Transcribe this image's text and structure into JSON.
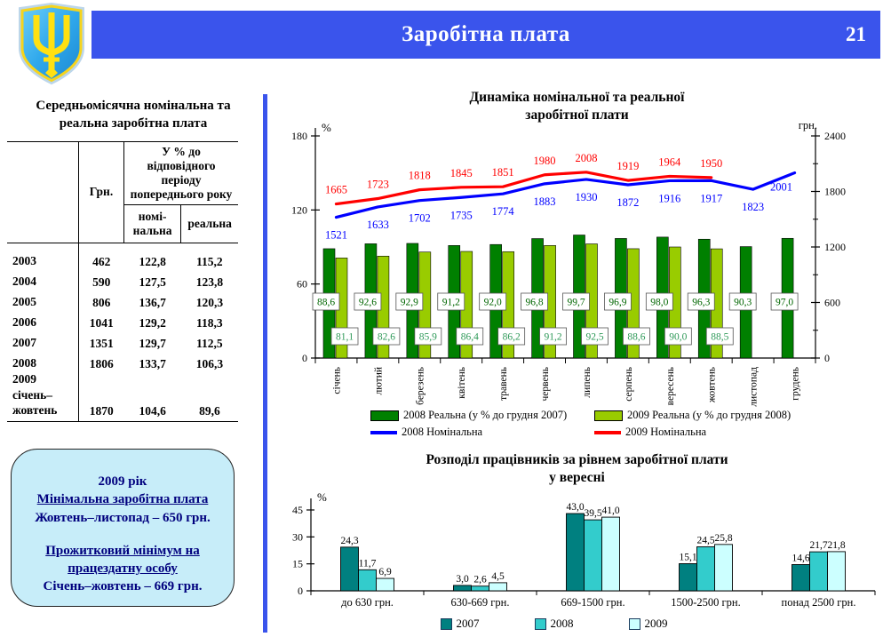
{
  "colors": {
    "header_blue": "#3A54EC",
    "info_box_bg": "#C7EDF9",
    "info_box_text": "#00007E",
    "shield_blue": "#2FA8EC",
    "trident_yellow": "#FFE012"
  },
  "header": {
    "title": "Заробітна плата",
    "page_number": "21"
  },
  "left_panel": {
    "title": "Середньомісячна номінальна та\nреальна  заробітна плата",
    "table": {
      "header_grn": "Грн.",
      "header_group": "У % до відповідного періоду попереднього року",
      "header_nominal": "номі-\nнальна",
      "header_real": "реальна",
      "rows": [
        {
          "period": "2003",
          "grn": "462",
          "nominal": "122,8",
          "real": "115,2"
        },
        {
          "period": "2004",
          "grn": "590",
          "nominal": "127,5",
          "real": "123,8"
        },
        {
          "period": "2005",
          "grn": "806",
          "nominal": "136,7",
          "real": "120,3"
        },
        {
          "period": "2006",
          "grn": "1041",
          "nominal": "129,2",
          "real": "118,3"
        },
        {
          "period": "2007",
          "grn": "1351",
          "nominal": "129,7",
          "real": "112,5"
        },
        {
          "period": "2008",
          "grn": "1806",
          "nominal": "133,7",
          "real": "106,3"
        },
        {
          "period": "2009\nсічень–\nжовтень",
          "grn": "1870",
          "nominal": "104,6",
          "real": "89,6"
        }
      ]
    },
    "info_box": {
      "line1": "2009  рік",
      "line2": "Мінімальна заробітна плата",
      "line3": "Жовтень–листопад – 650 грн.",
      "line4": "Прожитковий мінімум на працездатну особу",
      "line5": "Січень–жовтень – 669 грн."
    }
  },
  "chart_data": [
    {
      "type": "bar+line",
      "title": "Динаміка номінальної та реальної\nзаробітної плати",
      "categories": [
        "січень",
        "лютий",
        "березень",
        "квітень",
        "травень",
        "червень",
        "липень",
        "серпень",
        "вересень",
        "жовтень",
        "листопад",
        "грудень"
      ],
      "left_axis": {
        "unit": "%",
        "min": 0,
        "max": 180,
        "ticks": [
          0,
          60,
          120,
          180
        ]
      },
      "right_axis": {
        "unit": "грн.",
        "min": 0,
        "max": 2400,
        "ticks": [
          0,
          600,
          1200,
          1800,
          2400
        ],
        "minor_ticks": [
          300,
          900,
          1500,
          2100
        ]
      },
      "bar_series": [
        {
          "name": "2008 Реальна (у % до грудня 2007)",
          "color": "#008000",
          "label_color": "#006600",
          "axis": "left",
          "values": [
            88.6,
            92.6,
            92.9,
            91.2,
            92.0,
            96.8,
            99.7,
            96.9,
            98.0,
            96.3,
            90.3,
            97.0
          ],
          "labels": [
            "88,6",
            "92,6",
            "92,9",
            "91,2",
            "92,0",
            "96,8",
            "99,7",
            "96,9",
            "98,0",
            "96,3",
            "90,3",
            "97,0"
          ]
        },
        {
          "name": "2009 Реальна (у % до грудня 2008)",
          "color": "#99CC00",
          "label_color": "#2E9958",
          "axis": "left",
          "values": [
            81.1,
            82.6,
            85.9,
            86.4,
            86.2,
            91.2,
            92.5,
            88.6,
            90.0,
            88.5,
            null,
            null
          ],
          "labels": [
            "81,1",
            "82,6",
            "85,9",
            "86,4",
            "86,2",
            "91,2",
            "92,5",
            "88,6",
            "90,0",
            "88,5",
            null,
            null
          ]
        }
      ],
      "line_series": [
        {
          "name": "2008 Номінальна",
          "color": "#0000FF",
          "axis": "right",
          "label_position": "below",
          "values": [
            1521,
            1633,
            1702,
            1735,
            1774,
            1883,
            1930,
            1872,
            1916,
            1917,
            1823,
            2001
          ]
        },
        {
          "name": "2009 Номінальна",
          "color": "#FF0000",
          "axis": "right",
          "label_position": "above",
          "values": [
            1665,
            1723,
            1818,
            1845,
            1851,
            1980,
            2008,
            1919,
            1964,
            1950,
            null,
            null
          ]
        }
      ],
      "legend_position": "bottom",
      "grid": false
    },
    {
      "type": "bar",
      "title": "Розподіл працівників за рівнем заробітної плати\nу вересні",
      "categories": [
        "до 630 грн.",
        "630-669 грн.",
        "669-1500 грн.",
        "1500-2500 грн.",
        "понад 2500 грн."
      ],
      "ylabel": "%",
      "ylim": [
        0,
        45
      ],
      "yticks": [
        0,
        15,
        30,
        45
      ],
      "series": [
        {
          "name": "2007",
          "color": "#008080",
          "values": [
            24.3,
            3.0,
            43.0,
            15.1,
            14.6
          ],
          "labels": [
            "24,3",
            "3,0",
            "43,0",
            "15,1",
            "14,6"
          ]
        },
        {
          "name": "2008",
          "color": "#33CCCC",
          "values": [
            11.7,
            2.6,
            39.5,
            24.5,
            21.7
          ],
          "labels": [
            "11,7",
            "2,6",
            "39,5",
            "24,5",
            "21,7"
          ]
        },
        {
          "name": "2009",
          "color": "#CCFFFF",
          "values": [
            6.9,
            4.5,
            41.0,
            25.8,
            21.8
          ],
          "labels": [
            "6,9",
            "4,5",
            "41,0",
            "25,8",
            "21,8"
          ]
        }
      ],
      "legend_position": "bottom",
      "grid": false
    }
  ]
}
